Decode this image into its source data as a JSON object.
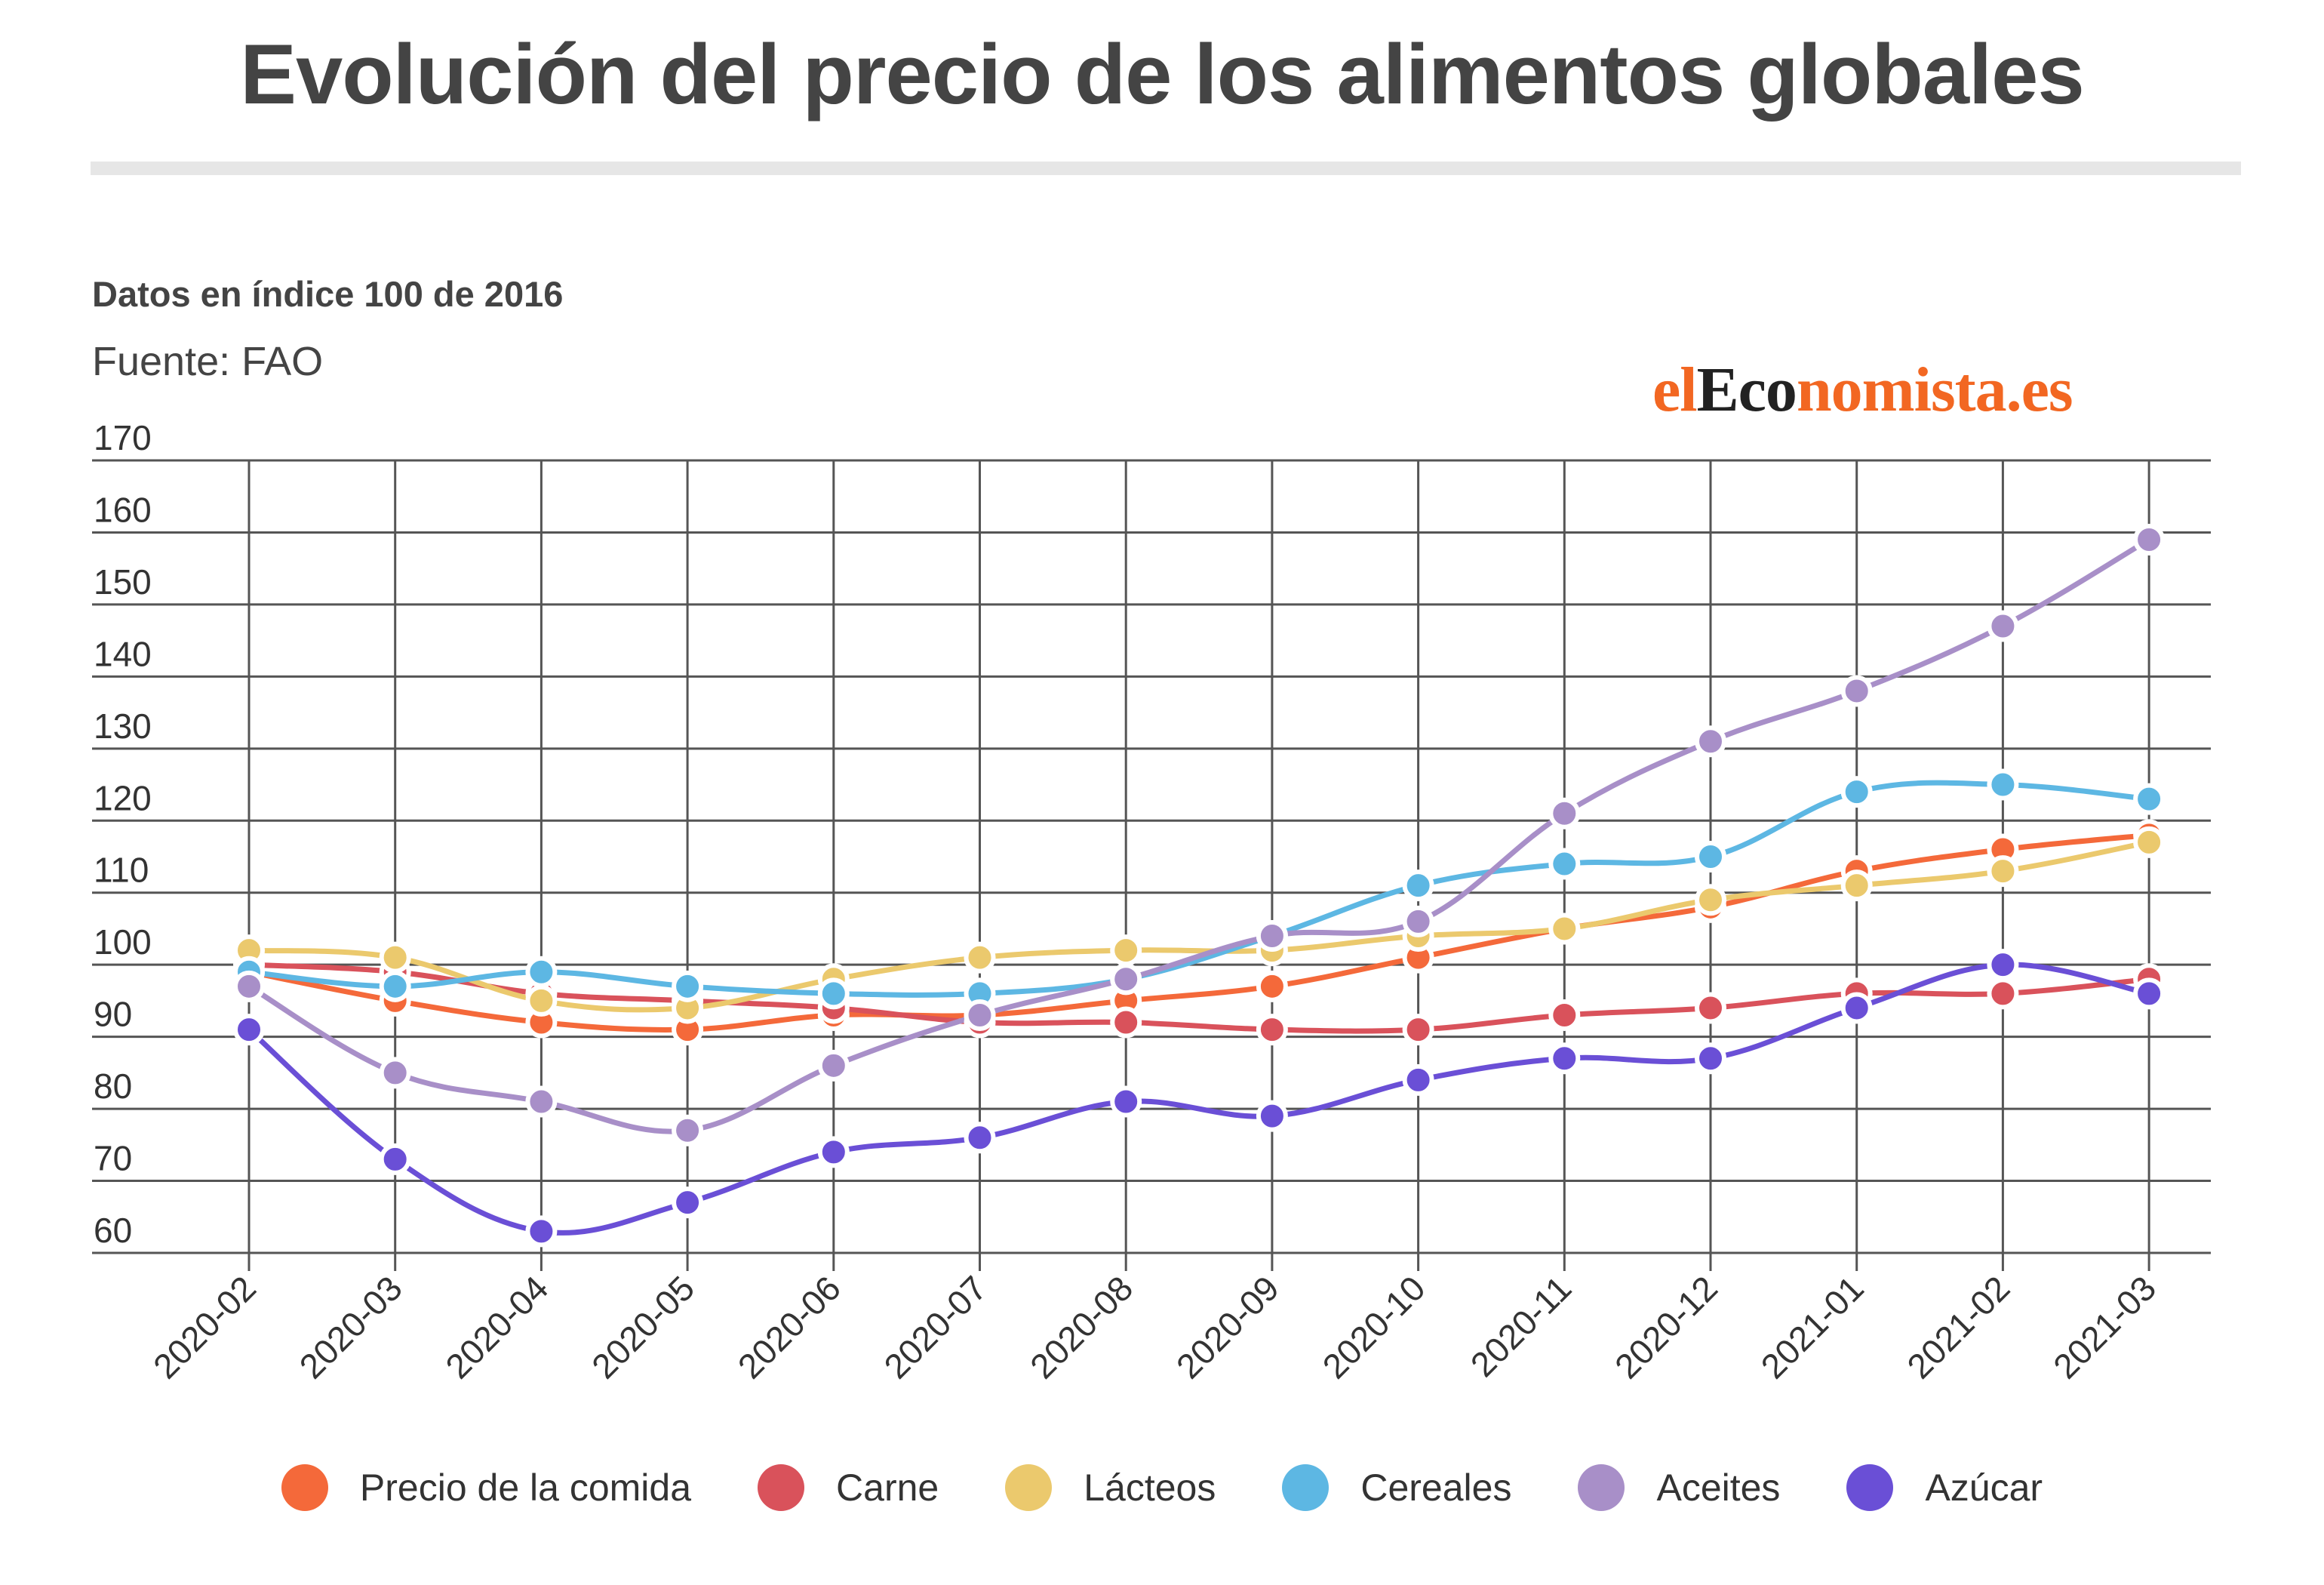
{
  "header": {
    "title": "Evolución del precio de los alimentos globales",
    "subtitle": "Datos en índice 100 de 2016",
    "source": "Fuente: FAO"
  },
  "logo": {
    "part1": "el",
    "part2": "Eco",
    "part3": "nomista.es"
  },
  "chart_data": {
    "type": "line",
    "title": "Evolución del precio de los alimentos globales",
    "subtitle": "Datos en índice 100 de 2016",
    "xlabel": "",
    "ylabel": "",
    "ylim": [
      60,
      170
    ],
    "yticks": [
      60,
      70,
      80,
      90,
      100,
      110,
      120,
      130,
      140,
      150,
      160,
      170
    ],
    "grid": true,
    "legend_position": "bottom",
    "categories": [
      "2020-02",
      "2020-03",
      "2020-04",
      "2020-05",
      "2020-06",
      "2020-07",
      "2020-08",
      "2020-09",
      "2020-10",
      "2020-11",
      "2020-12",
      "2021-01",
      "2021-02",
      "2021-03"
    ],
    "series": [
      {
        "name": "Precio de la comida",
        "color": "#f4693a",
        "values": [
          99,
          95,
          92,
          91,
          93,
          93,
          95,
          97,
          101,
          105,
          108,
          113,
          116,
          118
        ]
      },
      {
        "name": "Carne",
        "color": "#d9525b",
        "values": [
          100,
          99,
          96,
          95,
          94,
          92,
          92,
          91,
          91,
          93,
          94,
          96,
          96,
          98
        ]
      },
      {
        "name": "Lácteos",
        "color": "#ebc96d",
        "values": [
          102,
          101,
          95,
          94,
          98,
          101,
          102,
          102,
          104,
          105,
          109,
          111,
          113,
          117
        ]
      },
      {
        "name": "Cereales",
        "color": "#5db7e3",
        "values": [
          99,
          97,
          99,
          97,
          96,
          96,
          98,
          104,
          111,
          114,
          115,
          124,
          125,
          123
        ]
      },
      {
        "name": "Aceites",
        "color": "#a88fc8",
        "values": [
          97,
          85,
          81,
          77,
          86,
          93,
          98,
          104,
          106,
          121,
          131,
          138,
          147,
          159
        ]
      },
      {
        "name": "Azúcar",
        "color": "#6a4fd6",
        "values": [
          91,
          73,
          63,
          67,
          74,
          76,
          81,
          79,
          84,
          87,
          87,
          94,
          100,
          96
        ]
      }
    ]
  }
}
